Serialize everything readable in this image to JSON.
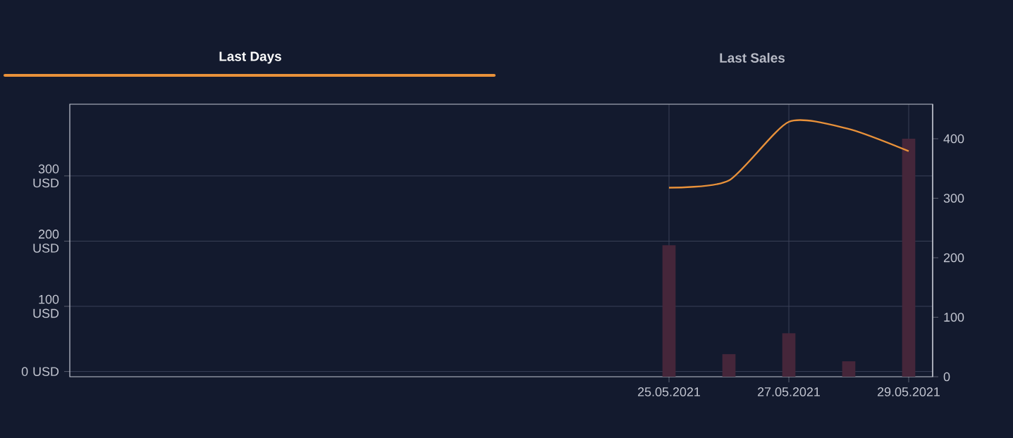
{
  "chart_data": {
    "type": "bar",
    "x": [
      "2021-05-25",
      "2021-05-26",
      "2021-05-27",
      "2021-05-28",
      "2021-05-29"
    ],
    "series": [
      {
        "axis": "y2",
        "color": "#45263a",
        "values": [
          221,
          38,
          73,
          26,
          400
        ]
      },
      {
        "type": "line",
        "color": "#e8913a",
        "values": [
          282,
          293,
          383,
          372,
          338
        ]
      }
    ],
    "xlim": [
      "2021-05-15",
      "2021-05-29T09:36"
    ],
    "xticks": [
      {
        "value": "2021-05-25",
        "label": "25.05.2021"
      },
      {
        "value": "2021-05-27",
        "label": "27.05.2021"
      },
      {
        "value": "2021-05-29",
        "label": "29.05.2021"
      }
    ],
    "ylim": [
      -8,
      410
    ],
    "yticks": [
      {
        "value": 0,
        "label": "0 USD"
      },
      {
        "value": 100,
        "label": "100 USD"
      },
      {
        "value": 200,
        "label": "200 USD"
      },
      {
        "value": 300,
        "label": "300 USD"
      }
    ],
    "y2lim": [
      0,
      458
    ],
    "y2ticks": [
      0,
      100,
      200,
      300,
      400
    ],
    "grid": true,
    "marker": "none",
    "annotations": [
      "Last Days",
      "Last Sales"
    ]
  }
}
